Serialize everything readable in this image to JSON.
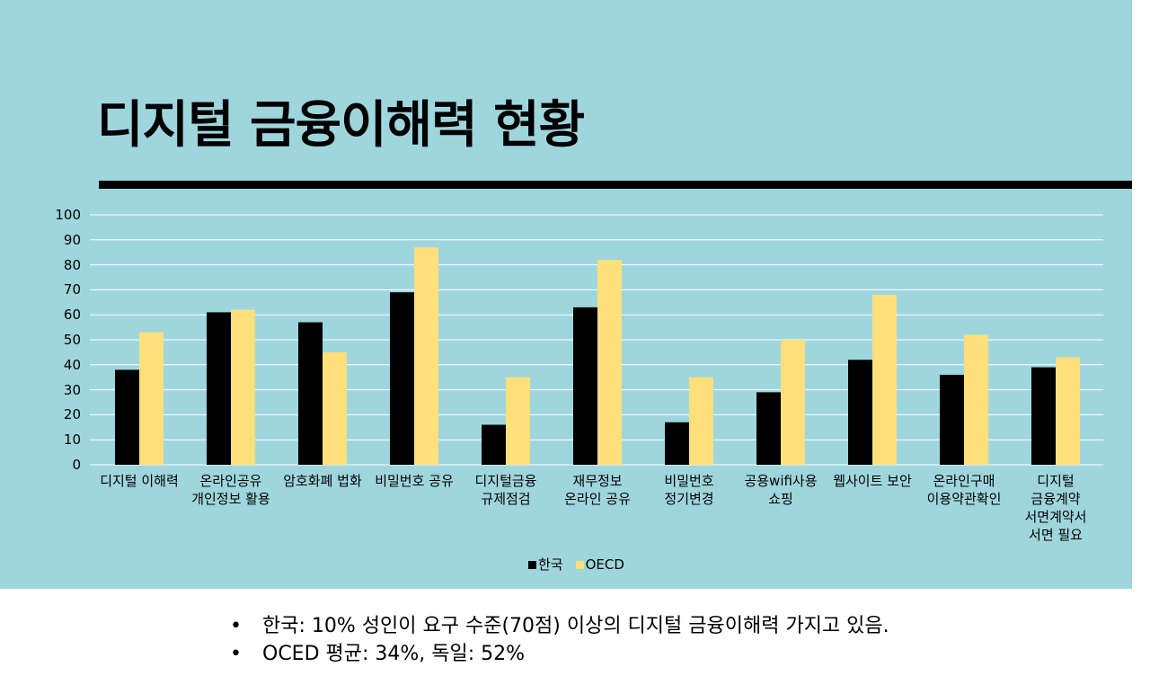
{
  "title": "디지털 금융이해력 현황",
  "colors": {
    "panel_background": "#9fd6dd",
    "grid": "#ffffff",
    "rule": "#000000"
  },
  "chart_data": {
    "type": "bar",
    "categories": [
      "디지털 이해력",
      "온라인공유\n개인정보 활용",
      "암호화폐 법화",
      "비밀번호 공유",
      "디지털금융\n규제점검",
      "재무정보\n온라인 공유",
      "비밀번호\n정기변경",
      "공용wifi사용\n쇼핑",
      "웹사이트 보안",
      "온라인구매\n이용약관확인",
      "디지털\n금융계약\n서면계약서\n서면 필요"
    ],
    "series": [
      {
        "name": "한국",
        "color": "#000000",
        "values": [
          38,
          61,
          57,
          69,
          16,
          63,
          17,
          29,
          42,
          36,
          39
        ]
      },
      {
        "name": "OECD",
        "color": "#ffe07a",
        "values": [
          53,
          62,
          45,
          87,
          35,
          82,
          35,
          50,
          68,
          52,
          43
        ]
      }
    ],
    "ylim": [
      0,
      100
    ],
    "yticks": [
      "0",
      "10",
      "20",
      "30",
      "40",
      "50",
      "60",
      "70",
      "80",
      "90",
      "100"
    ],
    "grid": true,
    "legend": "bottom"
  },
  "bullets": [
    "한국: 10% 성인이 요구 수준(70점) 이상의 디지털 금융이해력 가지고 있음.",
    "OCED 평균: 34%, 독일: 52%"
  ],
  "bullet_symbol": "•"
}
